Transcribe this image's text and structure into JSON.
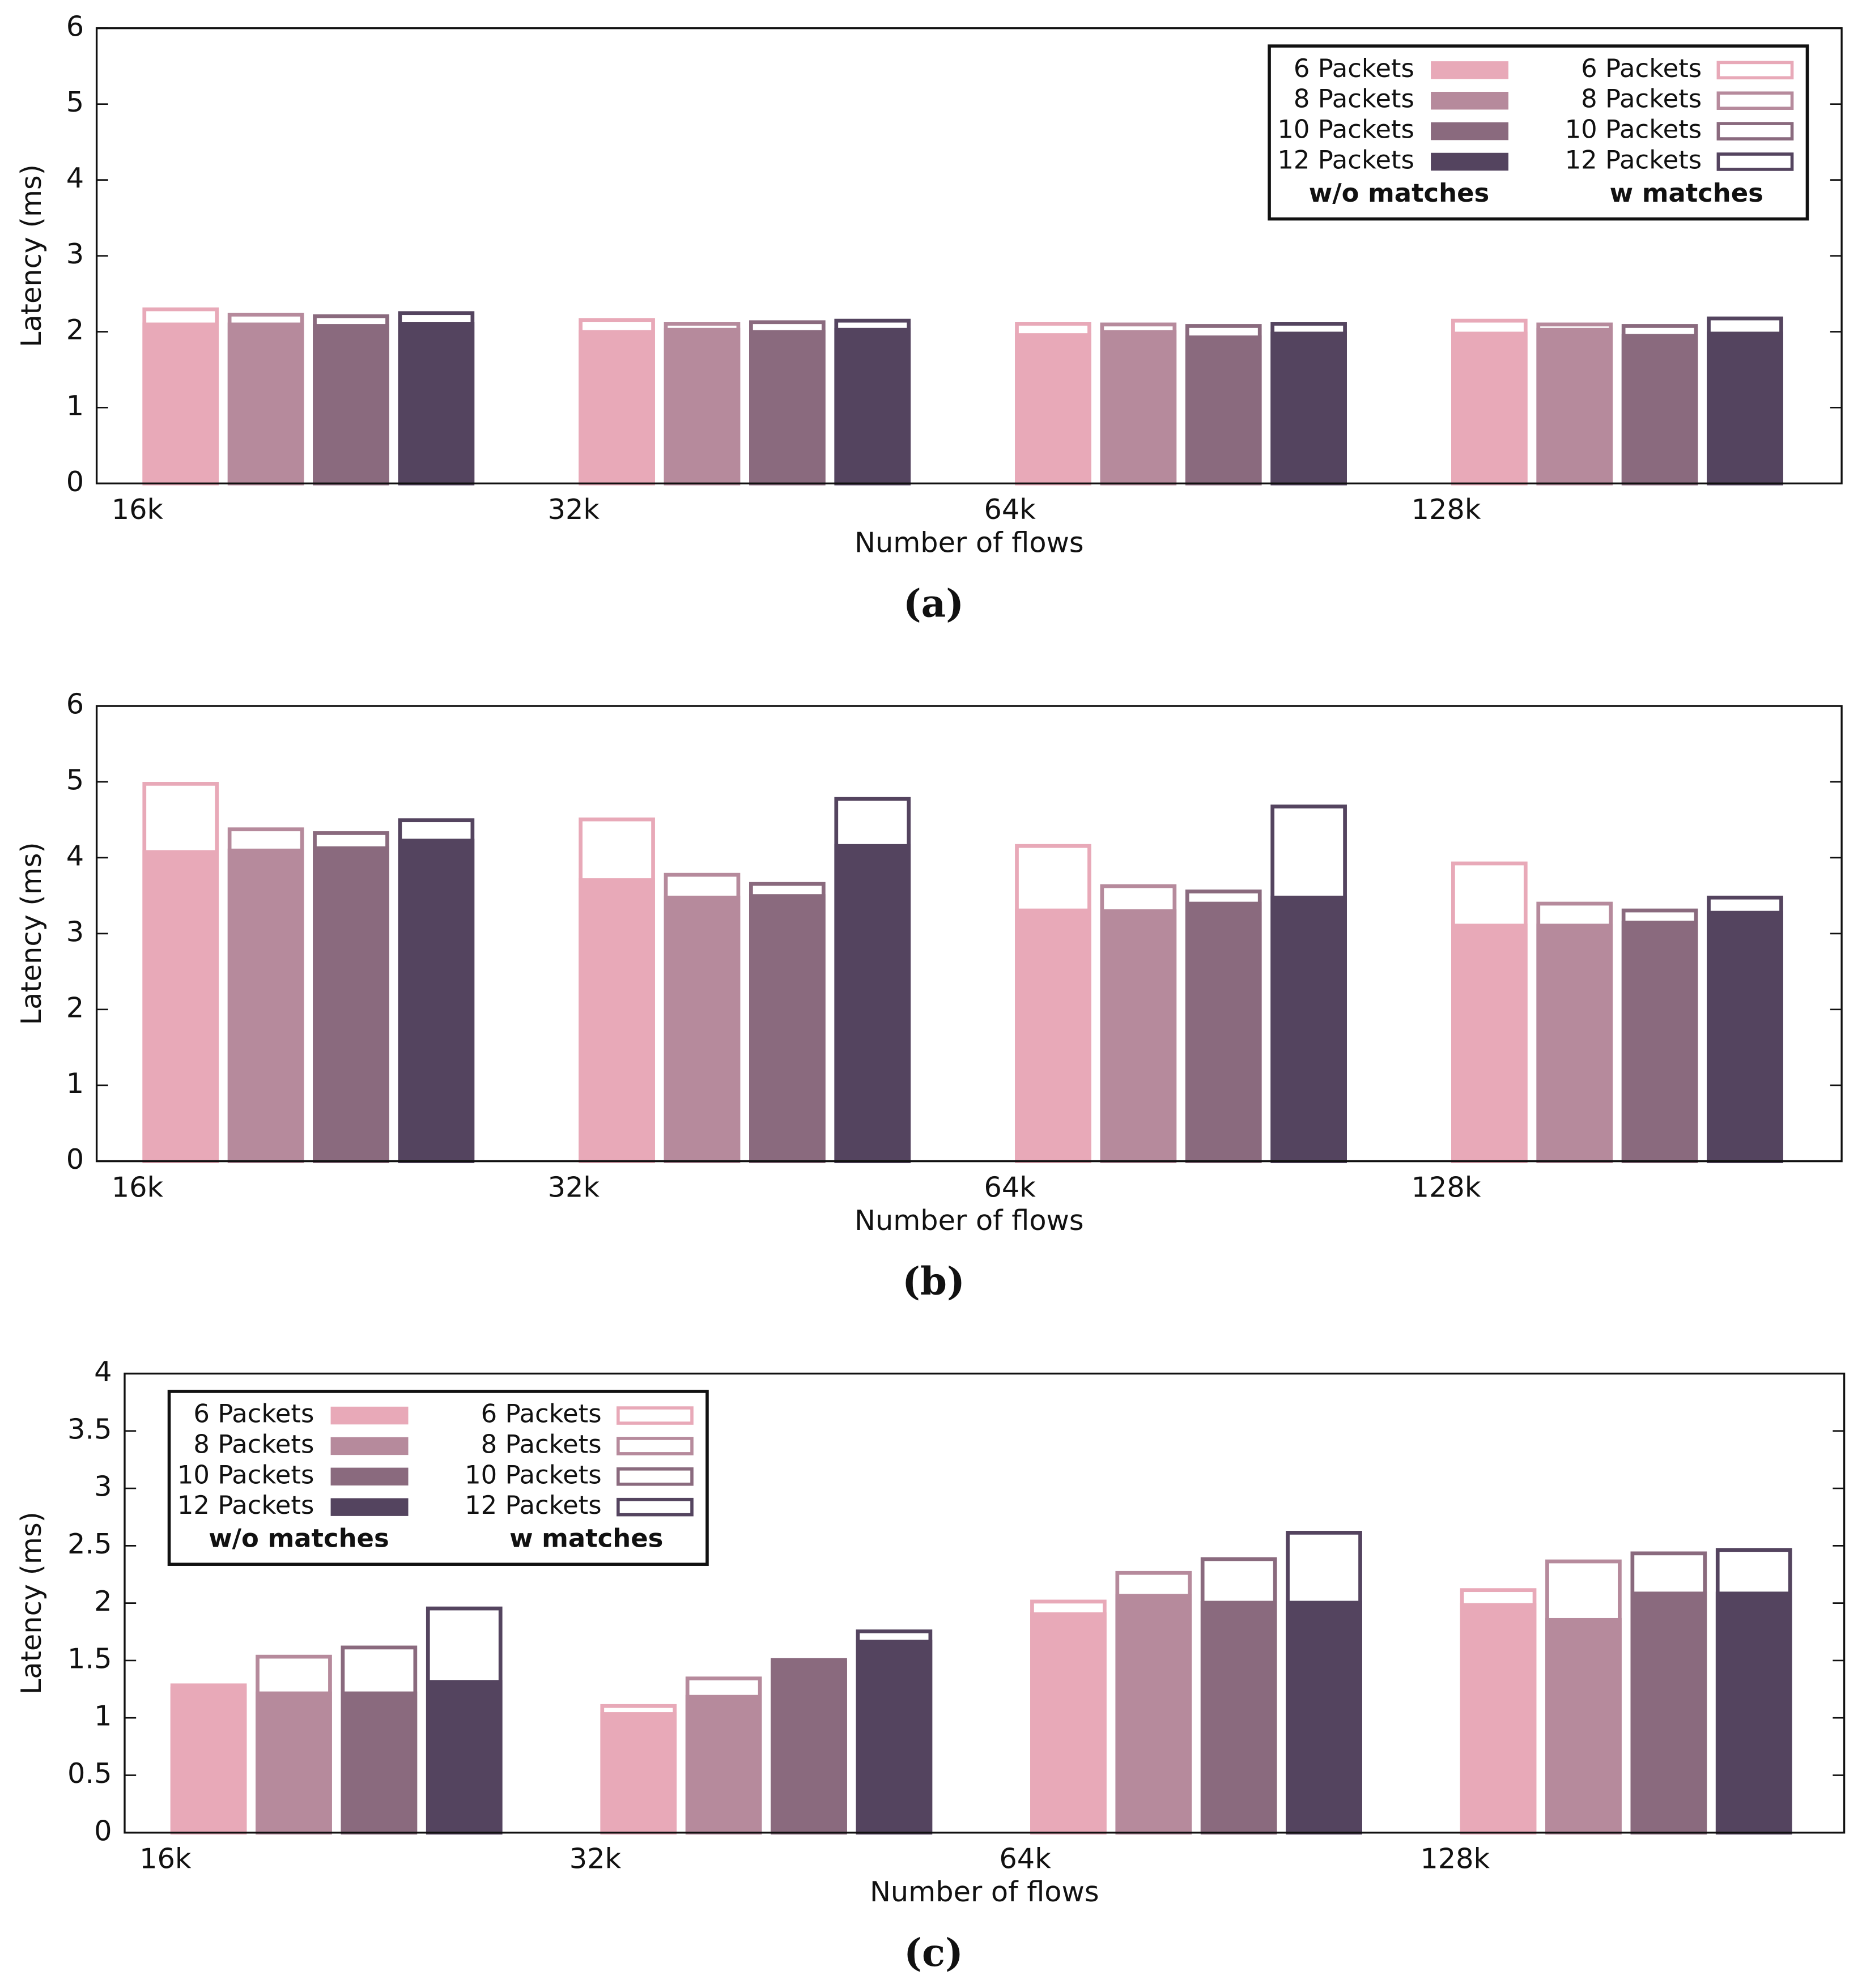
{
  "chart_data": [
    {
      "type": "bar",
      "caption": "(a)",
      "xlabel": "Number of flows",
      "ylabel": "Latency (ms)",
      "categories": [
        "16k",
        "32k",
        "64k",
        "128k"
      ],
      "ylim": [
        0,
        6
      ],
      "yticks": [
        0,
        1,
        2,
        3,
        4,
        5,
        6
      ],
      "legend": "top-right",
      "legend_titles": [
        "w/o matches",
        "w matches"
      ],
      "series": [
        {
          "name": "6 Packets",
          "style": "filled",
          "color": "#e8a9b8",
          "values": [
            2.12,
            2.02,
            1.98,
            2.0
          ]
        },
        {
          "name": "8 Packets",
          "style": "filled",
          "color": "#b68a9c",
          "values": [
            2.12,
            2.05,
            2.02,
            2.05
          ]
        },
        {
          "name": "10 Packets",
          "style": "filled",
          "color": "#8a6a7e",
          "values": [
            2.1,
            2.02,
            1.95,
            1.97
          ]
        },
        {
          "name": "12 Packets",
          "style": "filled",
          "color": "#54445f",
          "values": [
            2.13,
            2.05,
            2.0,
            2.0
          ]
        },
        {
          "name": "6 Packets",
          "style": "outline",
          "color": "#e8a9b8",
          "values": [
            2.32,
            2.18,
            2.13,
            2.17
          ]
        },
        {
          "name": "8 Packets",
          "style": "outline",
          "color": "#b68a9c",
          "values": [
            2.25,
            2.13,
            2.12,
            2.12
          ]
        },
        {
          "name": "10 Packets",
          "style": "outline",
          "color": "#8a6a7e",
          "values": [
            2.23,
            2.15,
            2.1,
            2.1
          ]
        },
        {
          "name": "12 Packets",
          "style": "outline",
          "color": "#54445f",
          "values": [
            2.27,
            2.17,
            2.13,
            2.2
          ]
        }
      ]
    },
    {
      "type": "bar",
      "caption": "(b)",
      "xlabel": "Number of flows",
      "ylabel": "Latency (ms)",
      "categories": [
        "16k",
        "32k",
        "64k",
        "128k"
      ],
      "ylim": [
        0,
        6
      ],
      "yticks": [
        0,
        1,
        2,
        3,
        4,
        5,
        6
      ],
      "series": [
        {
          "style": "filled",
          "color": "#e8a9b8",
          "values": [
            4.1,
            3.73,
            3.33,
            3.13
          ]
        },
        {
          "style": "filled",
          "color": "#b68a9c",
          "values": [
            4.12,
            3.5,
            3.32,
            3.13
          ]
        },
        {
          "style": "filled",
          "color": "#8a6a7e",
          "values": [
            4.15,
            3.52,
            3.42,
            3.17
          ]
        },
        {
          "style": "filled",
          "color": "#54445f",
          "values": [
            4.25,
            4.18,
            3.5,
            3.3
          ]
        },
        {
          "style": "outline",
          "color": "#e8a9b8",
          "values": [
            5.0,
            4.53,
            4.18,
            3.95
          ]
        },
        {
          "style": "outline",
          "color": "#b68a9c",
          "values": [
            4.4,
            3.8,
            3.65,
            3.42
          ]
        },
        {
          "style": "outline",
          "color": "#8a6a7e",
          "values": [
            4.35,
            3.68,
            3.58,
            3.33
          ]
        },
        {
          "style": "outline",
          "color": "#54445f",
          "values": [
            4.52,
            4.8,
            4.7,
            3.5
          ]
        }
      ]
    },
    {
      "type": "bar",
      "caption": "(c)",
      "xlabel": "Number of flows",
      "ylabel": "Latency (ms)",
      "categories": [
        "16k",
        "32k",
        "64k",
        "128k"
      ],
      "ylim": [
        0,
        4
      ],
      "yticks": [
        0,
        0.5,
        1,
        1.5,
        2,
        2.5,
        3,
        3.5,
        4
      ],
      "legend": "top-left",
      "legend_titles": [
        "w/o matches",
        "w matches"
      ],
      "series": [
        {
          "name": "6 Packets",
          "style": "filled",
          "color": "#e8a9b8",
          "values": [
            1.27,
            1.05,
            1.92,
            2.0
          ]
        },
        {
          "name": "8 Packets",
          "style": "filled",
          "color": "#b68a9c",
          "values": [
            1.23,
            1.2,
            2.08,
            1.87
          ]
        },
        {
          "name": "10 Packets",
          "style": "filled",
          "color": "#8a6a7e",
          "values": [
            1.23,
            1.5,
            2.02,
            2.1
          ]
        },
        {
          "name": "12 Packets",
          "style": "filled",
          "color": "#54445f",
          "values": [
            1.33,
            1.68,
            2.02,
            2.1
          ]
        },
        {
          "name": "6 Packets",
          "style": "outline",
          "color": "#e8a9b8",
          "values": [
            1.3,
            1.12,
            2.03,
            2.13
          ]
        },
        {
          "name": "8 Packets",
          "style": "outline",
          "color": "#b68a9c",
          "values": [
            1.55,
            1.36,
            2.28,
            2.38
          ]
        },
        {
          "name": "10 Packets",
          "style": "outline",
          "color": "#8a6a7e",
          "values": [
            1.63,
            1.52,
            2.4,
            2.45
          ]
        },
        {
          "name": "12 Packets",
          "style": "outline",
          "color": "#54445f",
          "values": [
            1.97,
            1.77,
            2.63,
            2.48
          ]
        }
      ]
    }
  ]
}
